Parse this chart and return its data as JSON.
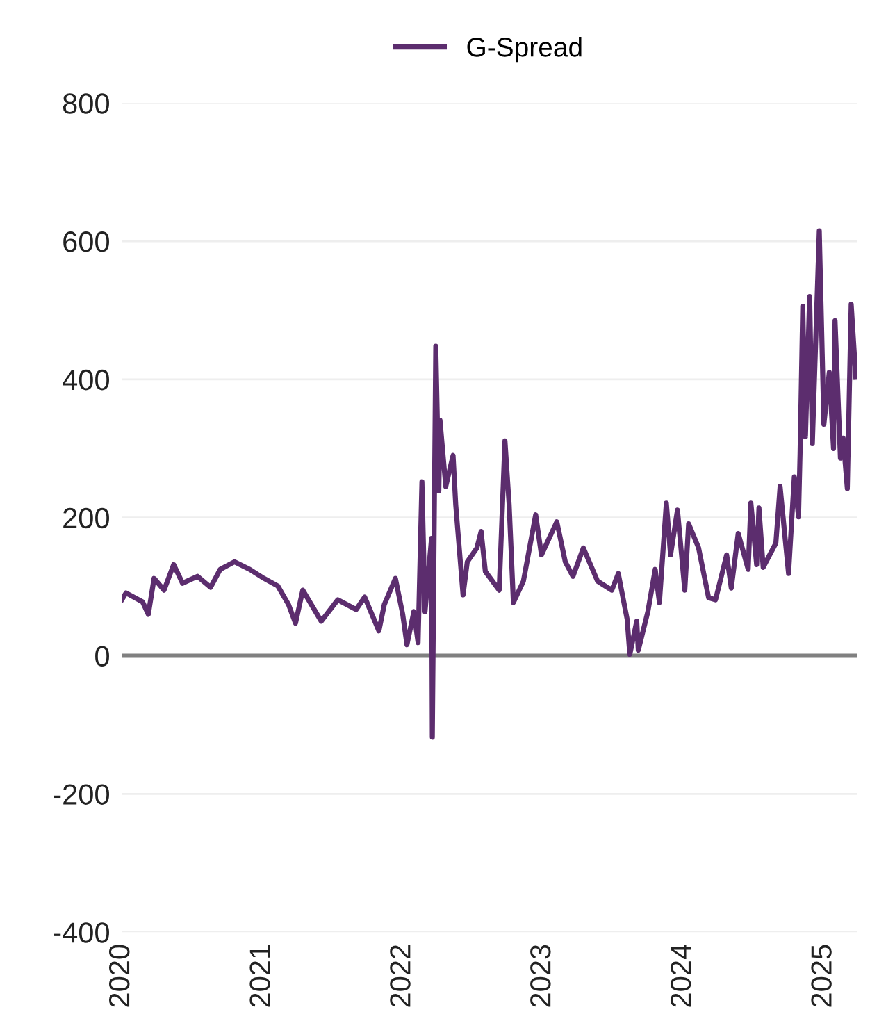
{
  "chart_data": {
    "type": "line",
    "series": [
      {
        "name": "G-Spread",
        "color": "#5c2d6e",
        "x": [
          "2020-01-01",
          "2020-01-12",
          "2020-02-24",
          "2020-03-10",
          "2020-03-25",
          "2020-04-20",
          "2020-05-15",
          "2020-06-07",
          "2020-07-16",
          "2020-08-19",
          "2020-09-13",
          "2020-10-20",
          "2020-11-29",
          "2021-01-05",
          "2021-02-10",
          "2021-03-10",
          "2021-03-28",
          "2021-04-16",
          "2021-06-03",
          "2021-07-16",
          "2021-09-02",
          "2021-09-24",
          "2021-10-31",
          "2021-11-14",
          "2021-12-13",
          "2022-01-01",
          "2022-01-12",
          "2022-01-30",
          "2022-02-10",
          "2022-02-20",
          "2022-02-28",
          "2022-03-17",
          "2022-03-19",
          "2022-03-28",
          "2022-04-05",
          "2022-04-08",
          "2022-04-23",
          "2022-05-12",
          "2022-05-19",
          "2022-06-07",
          "2022-06-18",
          "2022-07-13",
          "2022-07-24",
          "2022-08-04",
          "2022-09-09",
          "2022-09-24",
          "2022-10-05",
          "2022-10-16",
          "2022-11-11",
          "2022-12-13",
          "2022-12-28",
          "2023-02-06",
          "2023-02-28",
          "2023-03-20",
          "2023-04-16",
          "2023-05-23",
          "2023-06-29",
          "2023-07-16",
          "2023-08-08",
          "2023-08-15",
          "2023-09-02",
          "2023-09-06",
          "2023-10-01",
          "2023-10-20",
          "2023-10-31",
          "2023-11-18",
          "2023-11-29",
          "2023-12-17",
          "2024-01-05",
          "2024-01-15",
          "2024-02-10",
          "2024-03-07",
          "2024-03-25",
          "2024-04-23",
          "2024-05-05",
          "2024-05-23",
          "2024-06-18",
          "2024-06-25",
          "2024-07-10",
          "2024-07-16",
          "2024-07-27",
          "2024-08-29",
          "2024-09-09",
          "2024-10-01",
          "2024-10-16",
          "2024-10-27",
          "2024-10-31",
          "2024-11-07",
          "2024-11-14",
          "2024-11-25",
          "2024-12-02",
          "2024-12-20",
          "2025-01-01",
          "2025-01-15",
          "2025-01-26",
          "2025-01-30",
          "2025-02-13",
          "2025-02-20",
          "2025-03-03",
          "2025-03-13",
          "2025-03-25"
        ],
        "values": [
          81,
          91,
          78,
          60,
          112,
          95,
          132,
          105,
          115,
          99,
          125,
          136,
          125,
          112,
          101,
          74,
          47,
          95,
          50,
          81,
          67,
          85,
          36,
          74,
          112,
          60,
          16,
          64,
          19,
          252,
          64,
          170,
          -118,
          448,
          239,
          341,
          245,
          290,
          218,
          88,
          136,
          156,
          180,
          122,
          95,
          311,
          218,
          77,
          108,
          204,
          146,
          194,
          136,
          115,
          156,
          108,
          95,
          119,
          53,
          2,
          50,
          8,
          64,
          125,
          77,
          221,
          146,
          211,
          95,
          191,
          156,
          84,
          81,
          146,
          98,
          177,
          125,
          221,
          132,
          214,
          128,
          163,
          245,
          119,
          259,
          201,
          293,
          506,
          317,
          520,
          307,
          615,
          335,
          410,
          300,
          485,
          286,
          315,
          242,
          509,
          403
        ]
      }
    ],
    "xlim": [
      "2020-01-01",
      "2025-03-28"
    ],
    "xticks": [
      "2020",
      "2021",
      "2022",
      "2023",
      "2024",
      "2025"
    ],
    "ylim": [
      -400,
      800
    ],
    "yticks": [
      -400,
      -200,
      0,
      200,
      400,
      600,
      800
    ],
    "ref_lines": [
      {
        "axis": "y",
        "value": 0,
        "color": "#808080"
      }
    ],
    "grid": "y",
    "legend": "top",
    "marker": "none",
    "line_style": "solid"
  }
}
